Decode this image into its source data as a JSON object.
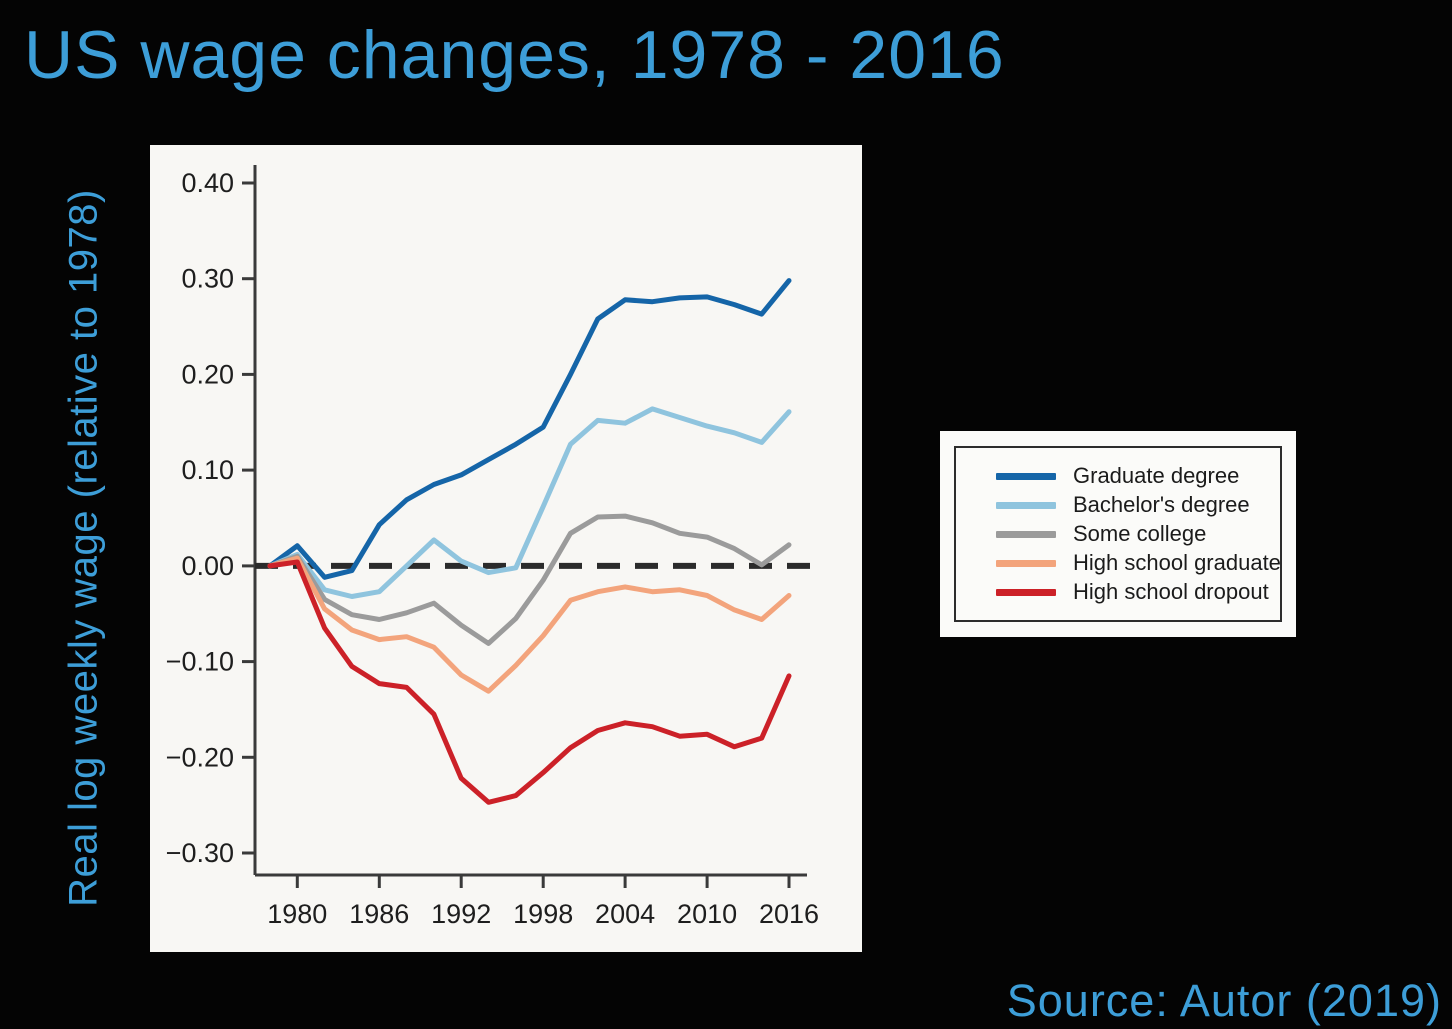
{
  "slide": {
    "title": "US wage changes, 1978 - 2016",
    "source": "Source: Autor (2019)",
    "accent_color": "#3d9ed8",
    "background_color": "#040404"
  },
  "chart_data": {
    "type": "line",
    "title": "US wage changes, 1978 - 2016",
    "ylabel": "Real log weekly wage (relative to 1978)",
    "xlabel": "",
    "grid": false,
    "legend_position": "right-outside",
    "panel_background": "#f8f7f4",
    "axis_color": "#3a3a3a",
    "tick_label_color": "#1e1e1e",
    "zero_line": {
      "value": 0.0,
      "style": "dashed",
      "color": "#2b2b2b"
    },
    "xlim": [
      1976.9,
      2017.3
    ],
    "ylim": [
      -0.32,
      0.42
    ],
    "x_tick_values": [
      1980,
      1986,
      1992,
      1998,
      2004,
      2010,
      2016
    ],
    "x_tick_labels": [
      "1980",
      "1986",
      "1992",
      "1998",
      "2004",
      "2010",
      "2016"
    ],
    "y_tick_values": [
      0.4,
      0.3,
      0.2,
      0.1,
      0.0,
      -0.1,
      -0.2,
      -0.3
    ],
    "y_tick_labels": [
      "0.40",
      "0.30",
      "0.20",
      "0.10",
      "0.00",
      "−0.10",
      "−0.20",
      "−0.30"
    ],
    "x": [
      1978,
      1980,
      1982,
      1984,
      1986,
      1988,
      1990,
      1992,
      1994,
      1996,
      1998,
      2000,
      2002,
      2004,
      2006,
      2008,
      2010,
      2012,
      2014,
      2016
    ],
    "series": [
      {
        "name": "Graduate degree",
        "color": "#1565a8",
        "values": [
          0.0,
          0.021,
          -0.012,
          -0.005,
          0.043,
          0.069,
          0.085,
          0.095,
          0.111,
          0.127,
          0.145,
          0.2,
          0.258,
          0.278,
          0.276,
          0.28,
          0.281,
          0.273,
          0.263,
          0.298
        ]
      },
      {
        "name": "Bachelor's degree",
        "color": "#8fc4de",
        "values": [
          0.0,
          0.012,
          -0.025,
          -0.032,
          -0.027,
          0.0,
          0.027,
          0.005,
          -0.007,
          -0.002,
          0.062,
          0.127,
          0.152,
          0.149,
          0.164,
          0.155,
          0.146,
          0.139,
          0.129,
          0.161
        ]
      },
      {
        "name": "Some college",
        "color": "#9b9b9b",
        "values": [
          0.0,
          0.01,
          -0.035,
          -0.051,
          -0.056,
          -0.049,
          -0.039,
          -0.062,
          -0.081,
          -0.055,
          -0.015,
          0.034,
          0.051,
          0.052,
          0.045,
          0.034,
          0.03,
          0.018,
          0.001,
          0.022
        ]
      },
      {
        "name": "High school graduate",
        "color": "#f3a47c",
        "values": [
          0.0,
          0.008,
          -0.045,
          -0.067,
          -0.077,
          -0.074,
          -0.085,
          -0.114,
          -0.131,
          -0.104,
          -0.073,
          -0.036,
          -0.027,
          -0.022,
          -0.027,
          -0.025,
          -0.031,
          -0.046,
          -0.056,
          -0.031
        ]
      },
      {
        "name": "High school dropout",
        "color": "#cc2128",
        "values": [
          0.0,
          0.004,
          -0.065,
          -0.105,
          -0.123,
          -0.127,
          -0.155,
          -0.222,
          -0.247,
          -0.24,
          -0.216,
          -0.19,
          -0.172,
          -0.164,
          -0.168,
          -0.178,
          -0.176,
          -0.189,
          -0.18,
          -0.115
        ]
      }
    ]
  }
}
